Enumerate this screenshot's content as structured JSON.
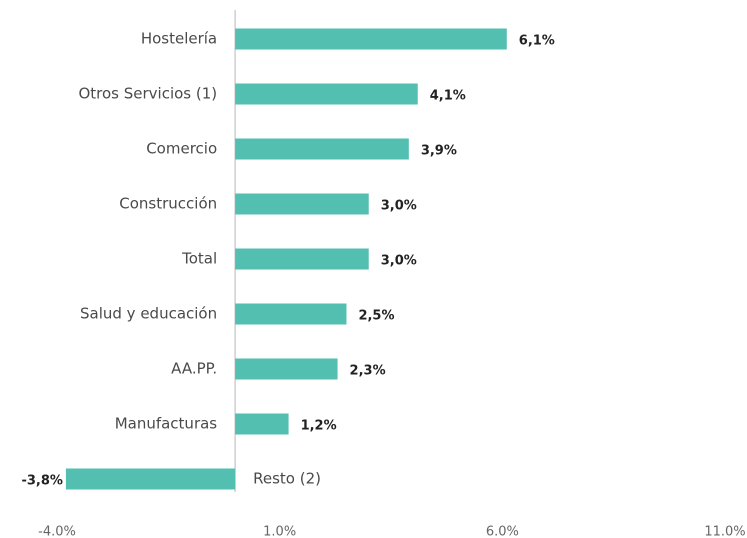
{
  "chart_data": {
    "type": "bar",
    "orientation": "horizontal",
    "categories": [
      "Hostelería",
      "Otros Servicios (1)",
      "Comercio",
      "Construcción",
      "Total",
      "Salud y educación",
      "AA.PP.",
      "Manufacturas",
      "Resto (2)"
    ],
    "values": [
      6.1,
      4.1,
      3.9,
      3.0,
      3.0,
      2.5,
      2.3,
      1.2,
      -3.8
    ],
    "value_labels": [
      "6,1%",
      "4,1%",
      "3,9%",
      "3,0%",
      "3,0%",
      "2,5%",
      "2,3%",
      "1,2%",
      "-3,8%"
    ],
    "color": "#52bfb0",
    "negative_label_color": "#e03c31",
    "xlim": [
      -4,
      11
    ],
    "xticks": [
      {
        "value": -4,
        "label": "-4.0%"
      },
      {
        "value": 1,
        "label": "1.0%"
      },
      {
        "value": 6,
        "label": "6.0%"
      },
      {
        "value": 11,
        "label": "11.0%"
      }
    ],
    "grid": false
  }
}
